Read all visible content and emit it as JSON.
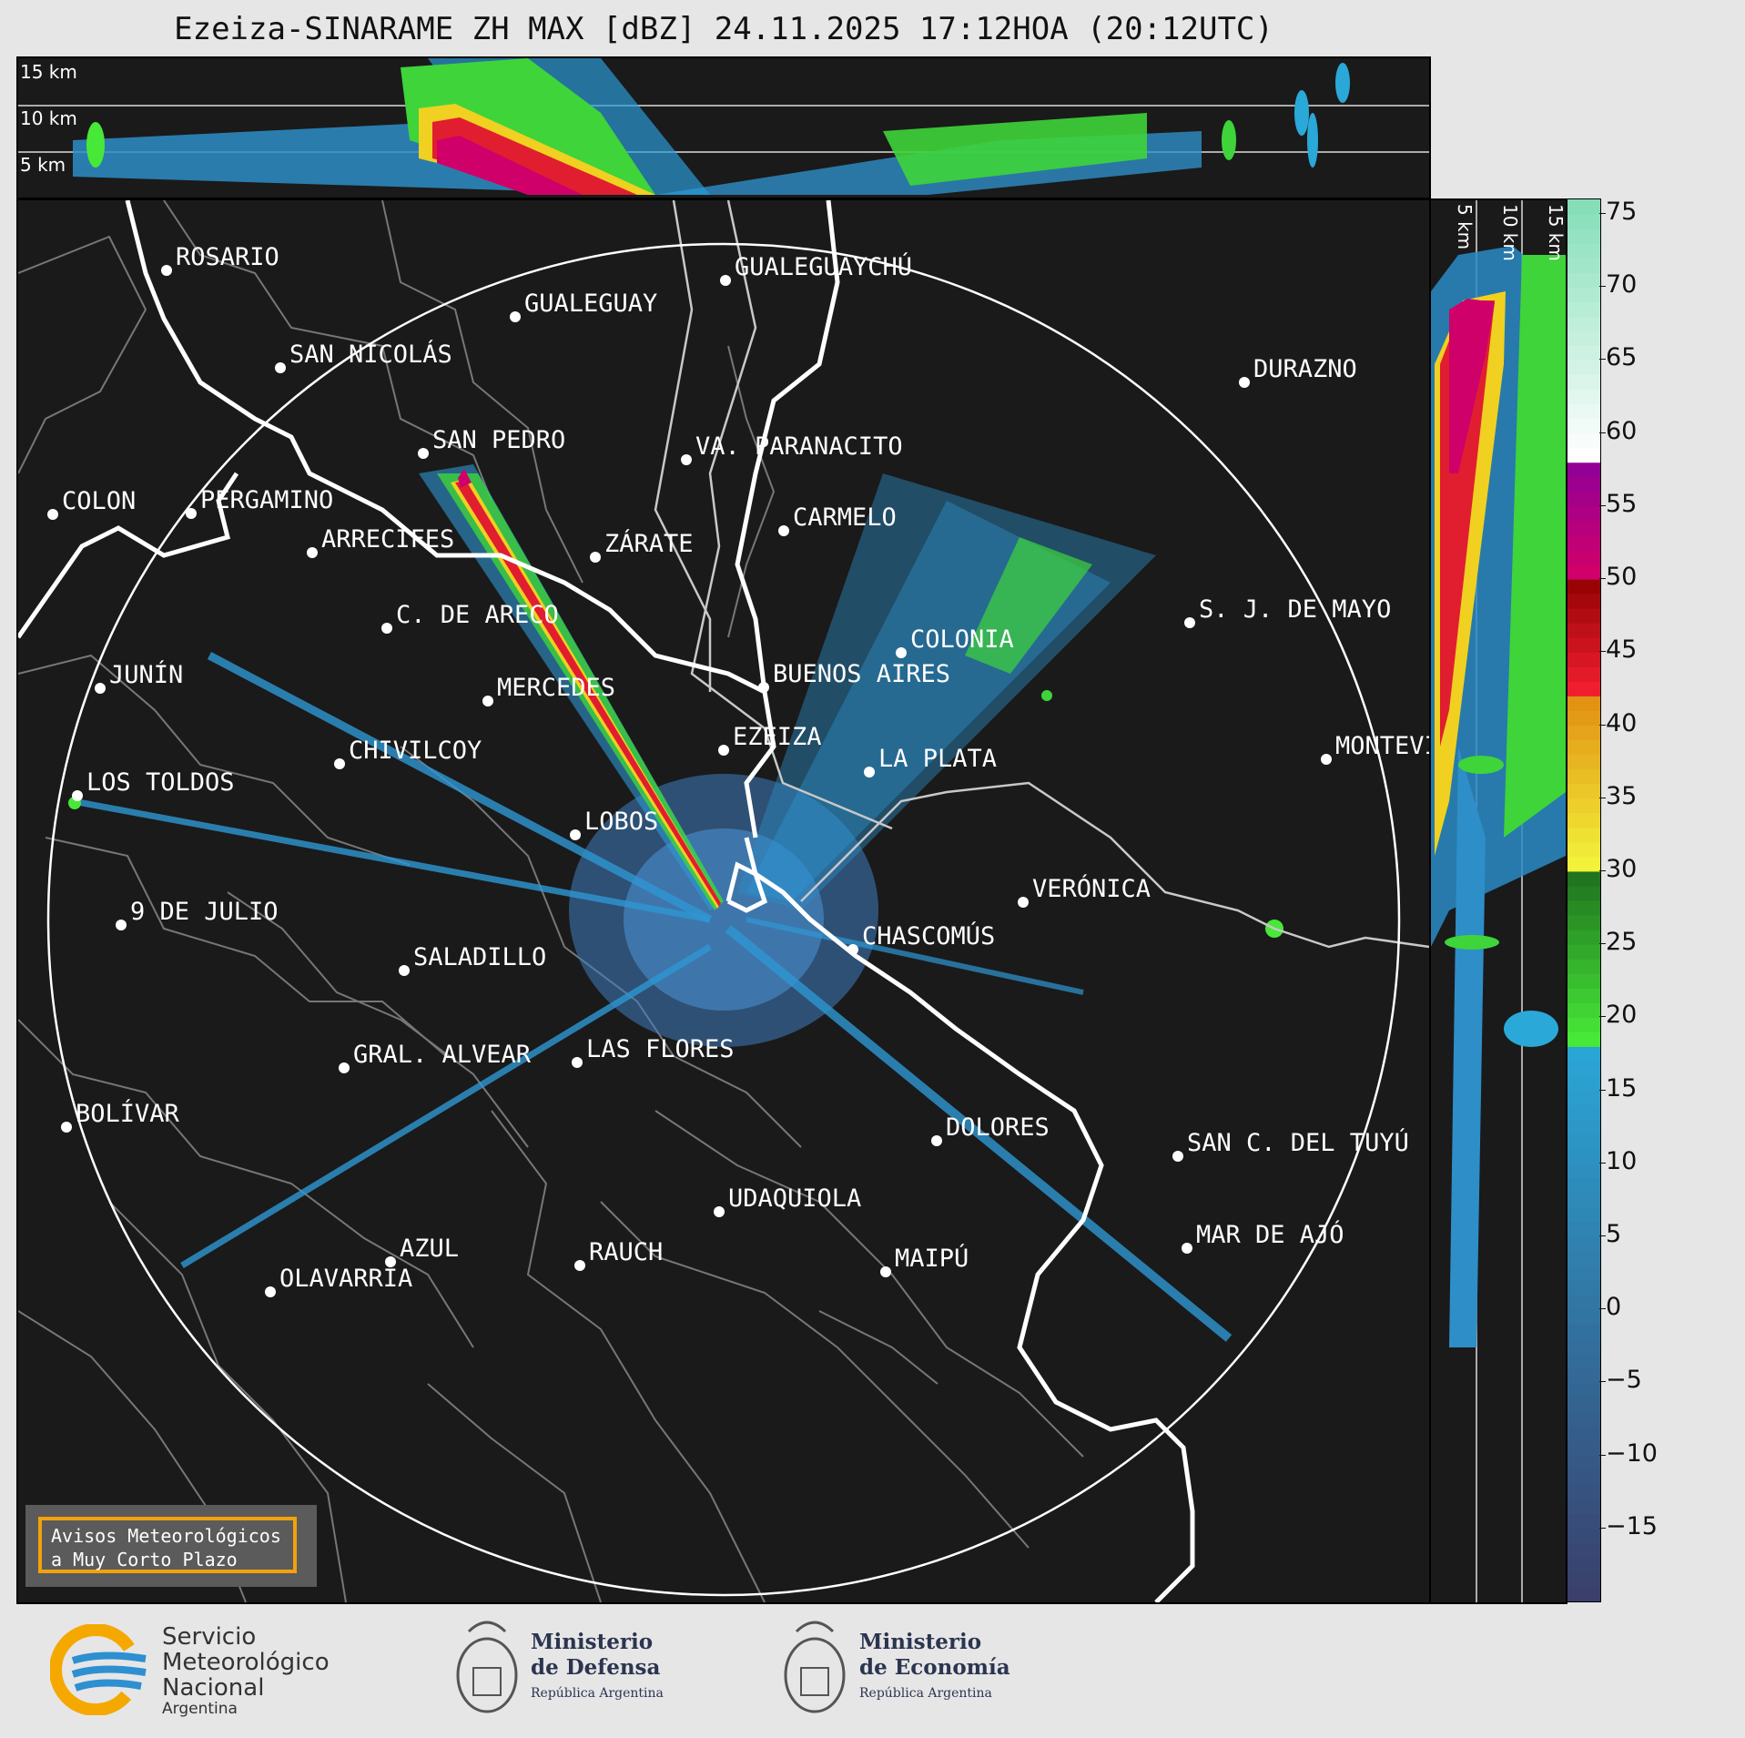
{
  "title": "Ezeiza-SINARAME ZH MAX [dBZ] 24.11.2025 17:12HOA (20:12UTC)",
  "top_heights": [
    "15 km",
    "10 km",
    "5 km"
  ],
  "side_heights": [
    "5 km",
    "10 km",
    "15 km"
  ],
  "cities": [
    {
      "name": "ROSARIO"
    },
    {
      "name": "GUALEGUAYCHÚ"
    },
    {
      "name": "GUALEGUAY"
    },
    {
      "name": "SAN NICOLÁS"
    },
    {
      "name": "DURAZNO"
    },
    {
      "name": "SAN PEDRO"
    },
    {
      "name": "VA. PARANACITO"
    },
    {
      "name": "COLON"
    },
    {
      "name": "PERGAMINO"
    },
    {
      "name": "CARMELO"
    },
    {
      "name": "ARRECIFES"
    },
    {
      "name": "ZÁRATE"
    },
    {
      "name": "C. DE ARECO"
    },
    {
      "name": "S. J. DE MAYO"
    },
    {
      "name": "COLONIA"
    },
    {
      "name": "JUNÍN"
    },
    {
      "name": "BUENOS AIRES"
    },
    {
      "name": "MERCEDES"
    },
    {
      "name": "EZEIZA"
    },
    {
      "name": "MONTEVIDEO"
    },
    {
      "name": "CHIVILCOY"
    },
    {
      "name": "LA PLATA"
    },
    {
      "name": "LOS TOLDOS"
    },
    {
      "name": "LOBOS"
    },
    {
      "name": "VERÓNICA"
    },
    {
      "name": "9 DE JULIO"
    },
    {
      "name": "CHASCOMÚS"
    },
    {
      "name": "SALADILLO"
    },
    {
      "name": "GRAL. ALVEAR"
    },
    {
      "name": "LAS FLORES"
    },
    {
      "name": "BOLÍVAR"
    },
    {
      "name": "DOLORES"
    },
    {
      "name": "SAN C. DEL TUYÚ"
    },
    {
      "name": "UDAQUIOLA"
    },
    {
      "name": "MAR DE AJÓ"
    },
    {
      "name": "AZUL"
    },
    {
      "name": "RAUCH"
    },
    {
      "name": "OLAVARRÍA"
    },
    {
      "name": "MAIPÚ"
    }
  ],
  "notice": {
    "line1": "Avisos Meteorológicos",
    "line2": "a Muy Corto Plazo",
    "border_color": "#f2a20c"
  },
  "colorbar": {
    "unit": "dBZ",
    "range": [
      -20,
      76
    ],
    "ticks": [
      "75",
      "70",
      "65",
      "60",
      "55",
      "50",
      "45",
      "40",
      "35",
      "30",
      "25",
      "20",
      "15",
      "10",
      "5",
      "0",
      "−5",
      "−10",
      "−15"
    ],
    "tick_values": [
      75,
      70,
      65,
      60,
      55,
      50,
      45,
      40,
      35,
      30,
      25,
      20,
      15,
      10,
      5,
      0,
      -5,
      -10,
      -15
    ],
    "bands": [
      {
        "from": -20,
        "to": 18,
        "c0": "#3a3f6b",
        "c1": "#2aa8d8"
      },
      {
        "from": 18,
        "to": 30,
        "c0": "#48e838",
        "c1": "#1c6a1c"
      },
      {
        "from": 30,
        "to": 42,
        "c0": "#f2f23a",
        "c1": "#e08a10"
      },
      {
        "from": 42,
        "to": 50,
        "c0": "#ef1f2f",
        "c1": "#8c0000"
      },
      {
        "from": 50,
        "to": 58,
        "c0": "#d0006a",
        "c1": "#8a009a"
      },
      {
        "from": 58,
        "to": 76,
        "c0": "#ffffff",
        "c1": "#7edcb4"
      }
    ]
  },
  "logos": {
    "smn": {
      "line1": "Servicio",
      "line2": "Meteorológico",
      "line3": "Nacional",
      "line4": "Argentina",
      "accent": "#f5a800",
      "blue": "#2e8fd1"
    },
    "defensa": {
      "line1": "Ministerio",
      "line2": "de Defensa",
      "line3": "República Argentina"
    },
    "economia": {
      "line1": "Ministerio",
      "line2": "de Economía",
      "line3": "República Argentina"
    }
  }
}
